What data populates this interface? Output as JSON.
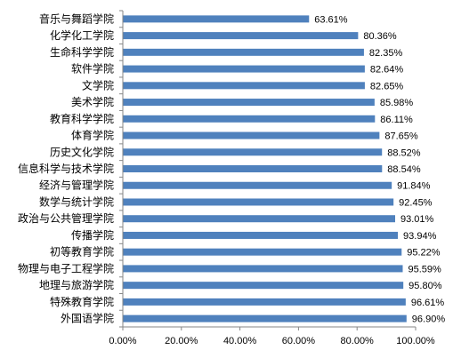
{
  "chart_data": {
    "type": "bar",
    "orientation": "horizontal",
    "categories": [
      "音乐与舞蹈学院",
      "化学化工学院",
      "生命科学学院",
      "软件学院",
      "文学院",
      "美术学院",
      "教育科学学院",
      "体育学院",
      "历史文化学院",
      "信息科学与技术学院",
      "经济与管理学院",
      "数学与统计学院",
      "政治与公共管理学院",
      "传播学院",
      "初等教育学院",
      "物理与电子工程学院",
      "地理与旅游学院",
      "特殊教育学院",
      "外国语学院"
    ],
    "values": [
      63.61,
      80.36,
      82.35,
      82.64,
      82.65,
      85.98,
      86.11,
      87.65,
      88.52,
      88.54,
      91.84,
      92.45,
      93.01,
      93.94,
      95.22,
      95.59,
      95.8,
      96.61,
      96.9
    ],
    "value_labels": [
      "63.61%",
      "80.36%",
      "82.35%",
      "82.64%",
      "82.65%",
      "85.98%",
      "86.11%",
      "87.65%",
      "88.52%",
      "88.54%",
      "91.84%",
      "92.45%",
      "93.01%",
      "93.94%",
      "95.22%",
      "95.59%",
      "95.80%",
      "96.61%",
      "96.90%"
    ],
    "x_ticks": [
      "0.00%",
      "20.00%",
      "40.00%",
      "60.00%",
      "80.00%",
      "100.00%"
    ],
    "x_tick_values": [
      0,
      20,
      40,
      60,
      80,
      100
    ],
    "xlim": [
      0,
      100
    ],
    "bar_color": "#4f81bd",
    "grid": false,
    "legend": "none"
  }
}
